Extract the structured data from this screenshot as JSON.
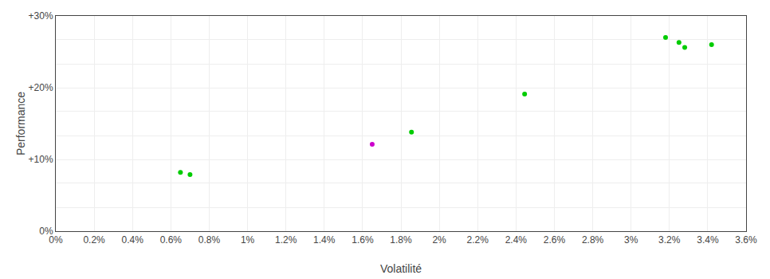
{
  "chart_data": {
    "type": "scatter",
    "xlabel": "Volatilité",
    "ylabel": "Performance",
    "xlim": [
      0,
      0.036
    ],
    "ylim": [
      0,
      0.3
    ],
    "xticks": [
      {
        "value": 0.0,
        "label": "0%"
      },
      {
        "value": 0.002,
        "label": "0.2%"
      },
      {
        "value": 0.004,
        "label": "0.4%"
      },
      {
        "value": 0.006,
        "label": "0.6%"
      },
      {
        "value": 0.008,
        "label": "0.8%"
      },
      {
        "value": 0.01,
        "label": "1%"
      },
      {
        "value": 0.012,
        "label": "1.2%"
      },
      {
        "value": 0.014,
        "label": "1.4%"
      },
      {
        "value": 0.016,
        "label": "1.6%"
      },
      {
        "value": 0.018,
        "label": "1.8%"
      },
      {
        "value": 0.02,
        "label": "2%"
      },
      {
        "value": 0.022,
        "label": "2.2%"
      },
      {
        "value": 0.024,
        "label": "2.4%"
      },
      {
        "value": 0.026,
        "label": "2.6%"
      },
      {
        "value": 0.028,
        "label": "2.8%"
      },
      {
        "value": 0.03,
        "label": "3%"
      },
      {
        "value": 0.032,
        "label": "3.2%"
      },
      {
        "value": 0.034,
        "label": "3.4%"
      },
      {
        "value": 0.036,
        "label": "3.6%"
      }
    ],
    "yticks": [
      {
        "value": 0.0,
        "label": "0%"
      },
      {
        "value": 0.033,
        "label": null
      },
      {
        "value": 0.067,
        "label": null
      },
      {
        "value": 0.1,
        "label": "+10%"
      },
      {
        "value": 0.133,
        "label": null
      },
      {
        "value": 0.167,
        "label": null
      },
      {
        "value": 0.2,
        "label": "+20%"
      },
      {
        "value": 0.233,
        "label": null
      },
      {
        "value": 0.267,
        "label": null
      },
      {
        "value": 0.3,
        "label": "+30%"
      }
    ],
    "grid": true,
    "series": [
      {
        "color": "#00cc00",
        "x": [
          0.0065,
          0.007,
          0.01855,
          0.02445,
          0.0318,
          0.0325,
          0.0328,
          0.0342
        ],
        "values": [
          0.082,
          0.079,
          0.138,
          0.191,
          0.27,
          0.263,
          0.256,
          0.26
        ]
      },
      {
        "color": "#cc00cc",
        "x": [
          0.0165
        ],
        "values": [
          0.121
        ]
      }
    ]
  }
}
